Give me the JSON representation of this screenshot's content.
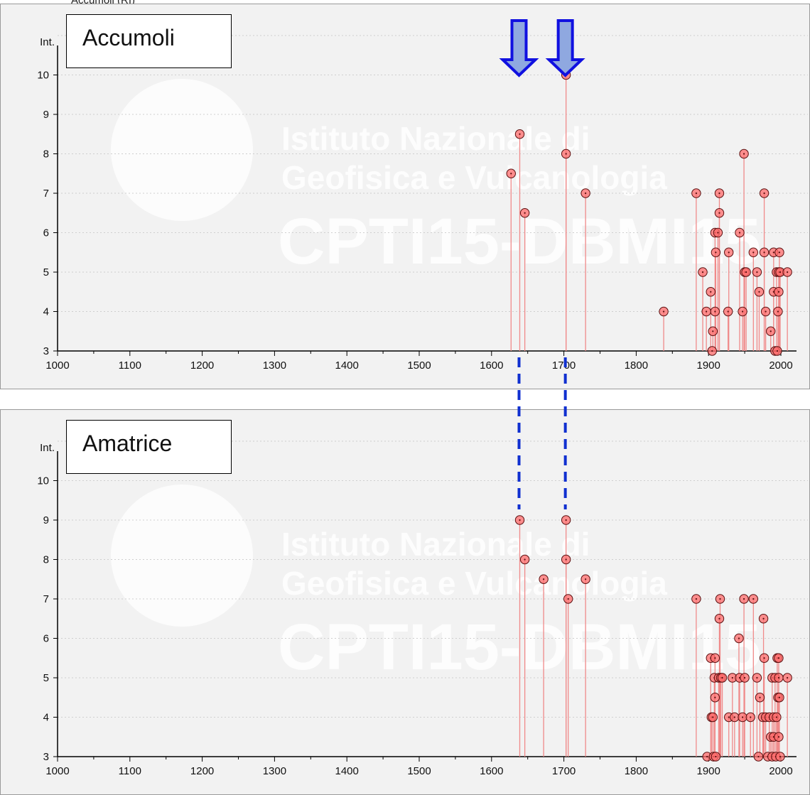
{
  "top_clipped_text": "Accumoli (RI)",
  "watermark": {
    "line1": "Istituto Nazionale di",
    "line2": "Geofisica e Vulcanologia",
    "line3": "CPTI15-DBMI15"
  },
  "colors": {
    "stem": "#f08a8a",
    "marker_fill": "#ff6b6b",
    "marker_edge": "#5a1010",
    "arrow_fill": "#8fa8e0",
    "arrow_edge": "#1010e0",
    "dashed_line": "#1030d0",
    "panel_bg": "#f2f2f2"
  },
  "panels": [
    {
      "station": "Accumoli",
      "ylabel": "Int.",
      "xlabels": [
        "1000",
        "1100",
        "1200",
        "1300",
        "1400",
        "1500",
        "1600",
        "1700",
        "1800",
        "1900",
        "2000"
      ],
      "ylabels": [
        "3",
        "4",
        "5",
        "6",
        "7",
        "8",
        "9",
        "10"
      ]
    },
    {
      "station": "Amatrice",
      "ylabel": "Int.",
      "xlabels": [
        "1000",
        "1100",
        "1200",
        "1300",
        "1400",
        "1500",
        "1600",
        "1700",
        "1800",
        "1900",
        "2000"
      ],
      "ylabels": [
        "3",
        "4",
        "5",
        "6",
        "7",
        "8",
        "9",
        "10"
      ]
    }
  ],
  "highlight_years": [
    1639,
    1703
  ],
  "chart_data": [
    {
      "type": "scatter",
      "title": "Accumoli",
      "xlabel": "",
      "ylabel": "Int.",
      "xlim": [
        1000,
        2020
      ],
      "ylim": [
        3,
        11
      ],
      "points": [
        {
          "x": 1627,
          "y": 7.5
        },
        {
          "x": 1639,
          "y": 8.5
        },
        {
          "x": 1646,
          "y": 6.5
        },
        {
          "x": 1703,
          "y": 10
        },
        {
          "x": 1703,
          "y": 8
        },
        {
          "x": 1730,
          "y": 7
        },
        {
          "x": 1838,
          "y": 4
        },
        {
          "x": 1883,
          "y": 7
        },
        {
          "x": 1892,
          "y": 5
        },
        {
          "x": 1897,
          "y": 4
        },
        {
          "x": 1903,
          "y": 4.5
        },
        {
          "x": 1905,
          "y": 3
        },
        {
          "x": 1906,
          "y": 3.5
        },
        {
          "x": 1909,
          "y": 4
        },
        {
          "x": 1909,
          "y": 6
        },
        {
          "x": 1910,
          "y": 5.5
        },
        {
          "x": 1913,
          "y": 6
        },
        {
          "x": 1915,
          "y": 6.5
        },
        {
          "x": 1915,
          "y": 7
        },
        {
          "x": 1927,
          "y": 4
        },
        {
          "x": 1928,
          "y": 5.5
        },
        {
          "x": 1943,
          "y": 6
        },
        {
          "x": 1947,
          "y": 4
        },
        {
          "x": 1949,
          "y": 8
        },
        {
          "x": 1950,
          "y": 5
        },
        {
          "x": 1952,
          "y": 5
        },
        {
          "x": 1962,
          "y": 5.5
        },
        {
          "x": 1967,
          "y": 5
        },
        {
          "x": 1970,
          "y": 4.5
        },
        {
          "x": 1977,
          "y": 7
        },
        {
          "x": 1977,
          "y": 5.5
        },
        {
          "x": 1979,
          "y": 4
        },
        {
          "x": 1986,
          "y": 3.5
        },
        {
          "x": 1990,
          "y": 4.5
        },
        {
          "x": 1990,
          "y": 5.5
        },
        {
          "x": 1992,
          "y": 3
        },
        {
          "x": 1994,
          "y": 5
        },
        {
          "x": 1995,
          "y": 3
        },
        {
          "x": 1996,
          "y": 4
        },
        {
          "x": 1997,
          "y": 5
        },
        {
          "x": 1997,
          "y": 4.5
        },
        {
          "x": 1998,
          "y": 5.5
        },
        {
          "x": 1999,
          "y": 5
        },
        {
          "x": 2009,
          "y": 5
        }
      ]
    },
    {
      "type": "scatter",
      "title": "Amatrice",
      "xlabel": "",
      "ylabel": "Int.",
      "xlim": [
        1000,
        2020
      ],
      "ylim": [
        3,
        11
      ],
      "points": [
        {
          "x": 1639,
          "y": 9
        },
        {
          "x": 1646,
          "y": 8
        },
        {
          "x": 1672,
          "y": 7.5
        },
        {
          "x": 1703,
          "y": 9
        },
        {
          "x": 1703,
          "y": 8
        },
        {
          "x": 1706,
          "y": 7
        },
        {
          "x": 1730,
          "y": 7.5
        },
        {
          "x": 1883,
          "y": 7
        },
        {
          "x": 1898,
          "y": 3
        },
        {
          "x": 1903,
          "y": 5.5
        },
        {
          "x": 1904,
          "y": 4
        },
        {
          "x": 1906,
          "y": 4
        },
        {
          "x": 1907,
          "y": 3
        },
        {
          "x": 1908,
          "y": 5
        },
        {
          "x": 1909,
          "y": 5.5
        },
        {
          "x": 1909,
          "y": 4.5
        },
        {
          "x": 1910,
          "y": 3
        },
        {
          "x": 1914,
          "y": 5
        },
        {
          "x": 1915,
          "y": 6.5
        },
        {
          "x": 1916,
          "y": 7
        },
        {
          "x": 1917,
          "y": 5
        },
        {
          "x": 1919,
          "y": 5
        },
        {
          "x": 1928,
          "y": 4
        },
        {
          "x": 1933,
          "y": 5
        },
        {
          "x": 1936,
          "y": 4
        },
        {
          "x": 1942,
          "y": 6
        },
        {
          "x": 1943,
          "y": 5
        },
        {
          "x": 1947,
          "y": 4
        },
        {
          "x": 1949,
          "y": 7
        },
        {
          "x": 1950,
          "y": 5
        },
        {
          "x": 1958,
          "y": 4
        },
        {
          "x": 1962,
          "y": 7
        },
        {
          "x": 1967,
          "y": 5
        },
        {
          "x": 1969,
          "y": 3
        },
        {
          "x": 1971,
          "y": 4.5
        },
        {
          "x": 1975,
          "y": 4
        },
        {
          "x": 1976,
          "y": 6.5
        },
        {
          "x": 1977,
          "y": 5.5
        },
        {
          "x": 1979,
          "y": 4
        },
        {
          "x": 1982,
          "y": 3
        },
        {
          "x": 1984,
          "y": 4
        },
        {
          "x": 1986,
          "y": 3.5
        },
        {
          "x": 1988,
          "y": 5
        },
        {
          "x": 1988,
          "y": 3
        },
        {
          "x": 1990,
          "y": 3.5
        },
        {
          "x": 1990,
          "y": 4
        },
        {
          "x": 1992,
          "y": 5
        },
        {
          "x": 1993,
          "y": 3
        },
        {
          "x": 1994,
          "y": 4
        },
        {
          "x": 1995,
          "y": 5.5
        },
        {
          "x": 1996,
          "y": 4.5
        },
        {
          "x": 1997,
          "y": 3.5
        },
        {
          "x": 1997,
          "y": 5.5
        },
        {
          "x": 1997,
          "y": 5
        },
        {
          "x": 1998,
          "y": 4.5
        },
        {
          "x": 1999,
          "y": 3
        },
        {
          "x": 2009,
          "y": 5
        }
      ]
    }
  ]
}
